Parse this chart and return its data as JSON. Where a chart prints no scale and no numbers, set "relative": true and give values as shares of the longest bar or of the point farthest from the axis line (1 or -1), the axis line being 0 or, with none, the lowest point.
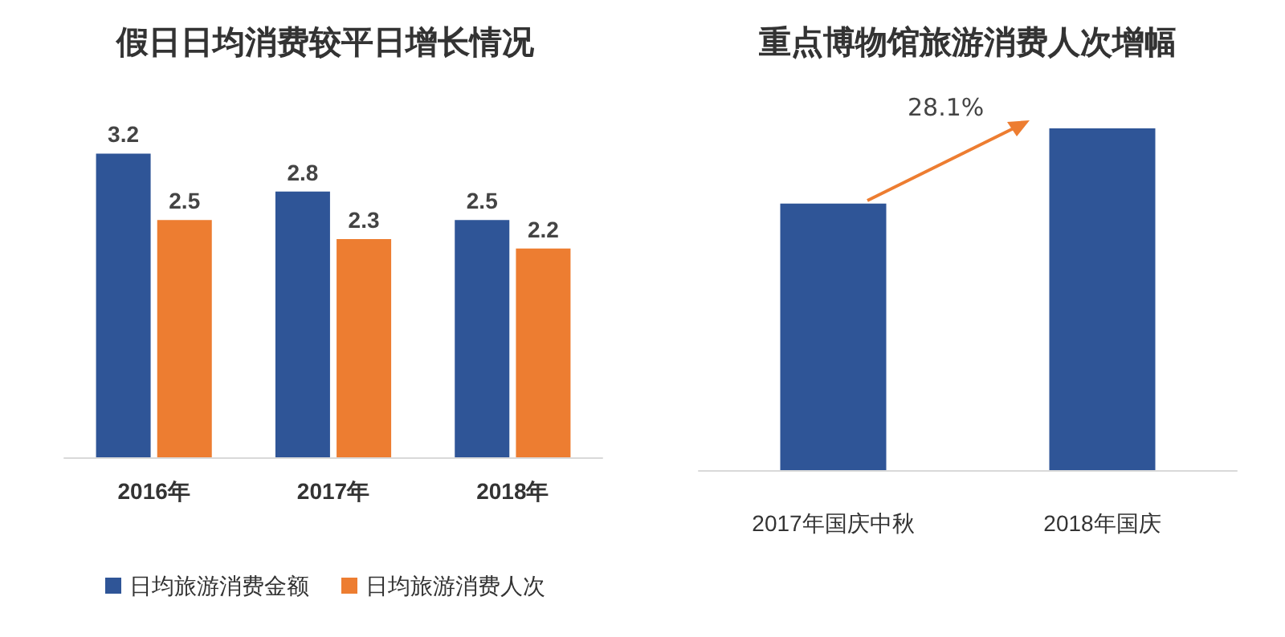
{
  "chart_data": [
    {
      "type": "bar",
      "title": "假日日均消费较平日增长情况",
      "categories": [
        "2016年",
        "2017年",
        "2018年"
      ],
      "series": [
        {
          "name": "日均旅游消费金额",
          "color": "#2f5597",
          "values": [
            3.2,
            2.8,
            2.5
          ]
        },
        {
          "name": "日均旅游消费人次",
          "color": "#ed7d31",
          "values": [
            2.5,
            2.3,
            2.2
          ]
        }
      ],
      "data_labels": true,
      "legend": "bottom",
      "grid": false,
      "tick_labels": "x"
    },
    {
      "type": "bar",
      "title": "重点博物馆旅游消费人次增幅",
      "categories": [
        "2017年国庆中秋",
        "2018年国庆"
      ],
      "series": [
        {
          "color": "#2f5597",
          "values": [
            0.78,
            1
          ]
        }
      ],
      "relative": true,
      "grid": false,
      "annotations": [
        "28.1%"
      ]
    }
  ]
}
